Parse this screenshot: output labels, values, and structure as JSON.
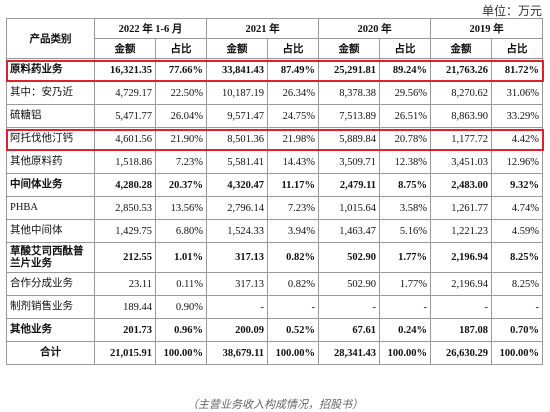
{
  "header": {
    "unit": "单位：万元"
  },
  "table": {
    "corner": "产品类别",
    "years": [
      "2022 年 1-6 月",
      "2021 年",
      "2020 年",
      "2019 年"
    ],
    "subheaders": [
      "金额",
      "占比"
    ],
    "rows": [
      {
        "label": "原料药业务",
        "cells": [
          "16,321.35",
          "77.66%",
          "33,841.43",
          "87.49%",
          "25,291.81",
          "89.24%",
          "21,763.26",
          "81.72%"
        ],
        "bold": true,
        "highlight": true
      },
      {
        "label": "其中：安乃近",
        "cells": [
          "4,729.17",
          "22.50%",
          "10,187.19",
          "26.34%",
          "8,378.38",
          "29.56%",
          "8,270.62",
          "31.06%"
        ],
        "bold": false,
        "highlight": false
      },
      {
        "label": "硫糖铝",
        "cells": [
          "5,471.77",
          "26.04%",
          "9,571.47",
          "24.75%",
          "7,513.89",
          "26.51%",
          "8,863.90",
          "33.29%"
        ],
        "bold": false,
        "highlight": false
      },
      {
        "label": "阿托伐他汀钙",
        "cells": [
          "4,601.56",
          "21.90%",
          "8,501.36",
          "21.98%",
          "5,889.84",
          "20.78%",
          "1,177.72",
          "4.42%"
        ],
        "bold": false,
        "highlight": true
      },
      {
        "label": "其他原料药",
        "cells": [
          "1,518.86",
          "7.23%",
          "5,581.41",
          "14.43%",
          "3,509.71",
          "12.38%",
          "3,451.03",
          "12.96%"
        ],
        "bold": false,
        "highlight": false
      },
      {
        "label": "中间体业务",
        "cells": [
          "4,280.28",
          "20.37%",
          "4,320.47",
          "11.17%",
          "2,479.11",
          "8.75%",
          "2,483.00",
          "9.32%"
        ],
        "bold": true,
        "highlight": false
      },
      {
        "label": "PHBA",
        "cells": [
          "2,850.53",
          "13.56%",
          "2,796.14",
          "7.23%",
          "1,015.64",
          "3.58%",
          "1,261.77",
          "4.74%"
        ],
        "bold": false,
        "highlight": false
      },
      {
        "label": "其他中间体",
        "cells": [
          "1,429.75",
          "6.80%",
          "1,524.33",
          "3.94%",
          "1,463.47",
          "5.16%",
          "1,221.23",
          "4.59%"
        ],
        "bold": false,
        "highlight": false
      },
      {
        "label": "草酸艾司西酞普兰片业务",
        "cells": [
          "212.55",
          "1.01%",
          "317.13",
          "0.82%",
          "502.90",
          "1.77%",
          "2,196.94",
          "8.25%"
        ],
        "bold": true,
        "highlight": false
      },
      {
        "label": "合作分成业务",
        "cells": [
          "23.11",
          "0.11%",
          "317.13",
          "0.82%",
          "502.90",
          "1.77%",
          "2,196.94",
          "8.25%"
        ],
        "bold": false,
        "highlight": false
      },
      {
        "label": "制剂销售业务",
        "cells": [
          "189.44",
          "0.90%",
          "-",
          "-",
          "-",
          "-",
          "-",
          "-"
        ],
        "bold": false,
        "highlight": false
      },
      {
        "label": "其他业务",
        "cells": [
          "201.73",
          "0.96%",
          "200.09",
          "0.52%",
          "67.61",
          "0.24%",
          "187.08",
          "0.70%"
        ],
        "bold": true,
        "highlight": false
      },
      {
        "label": "合计",
        "cells": [
          "21,015.91",
          "100.00%",
          "38,679.11",
          "100.00%",
          "28,341.43",
          "100.00%",
          "26,630.29",
          "100.00%"
        ],
        "bold": true,
        "highlight": false
      }
    ]
  },
  "caption": "（主营业务收入构成情况，招股书）"
}
